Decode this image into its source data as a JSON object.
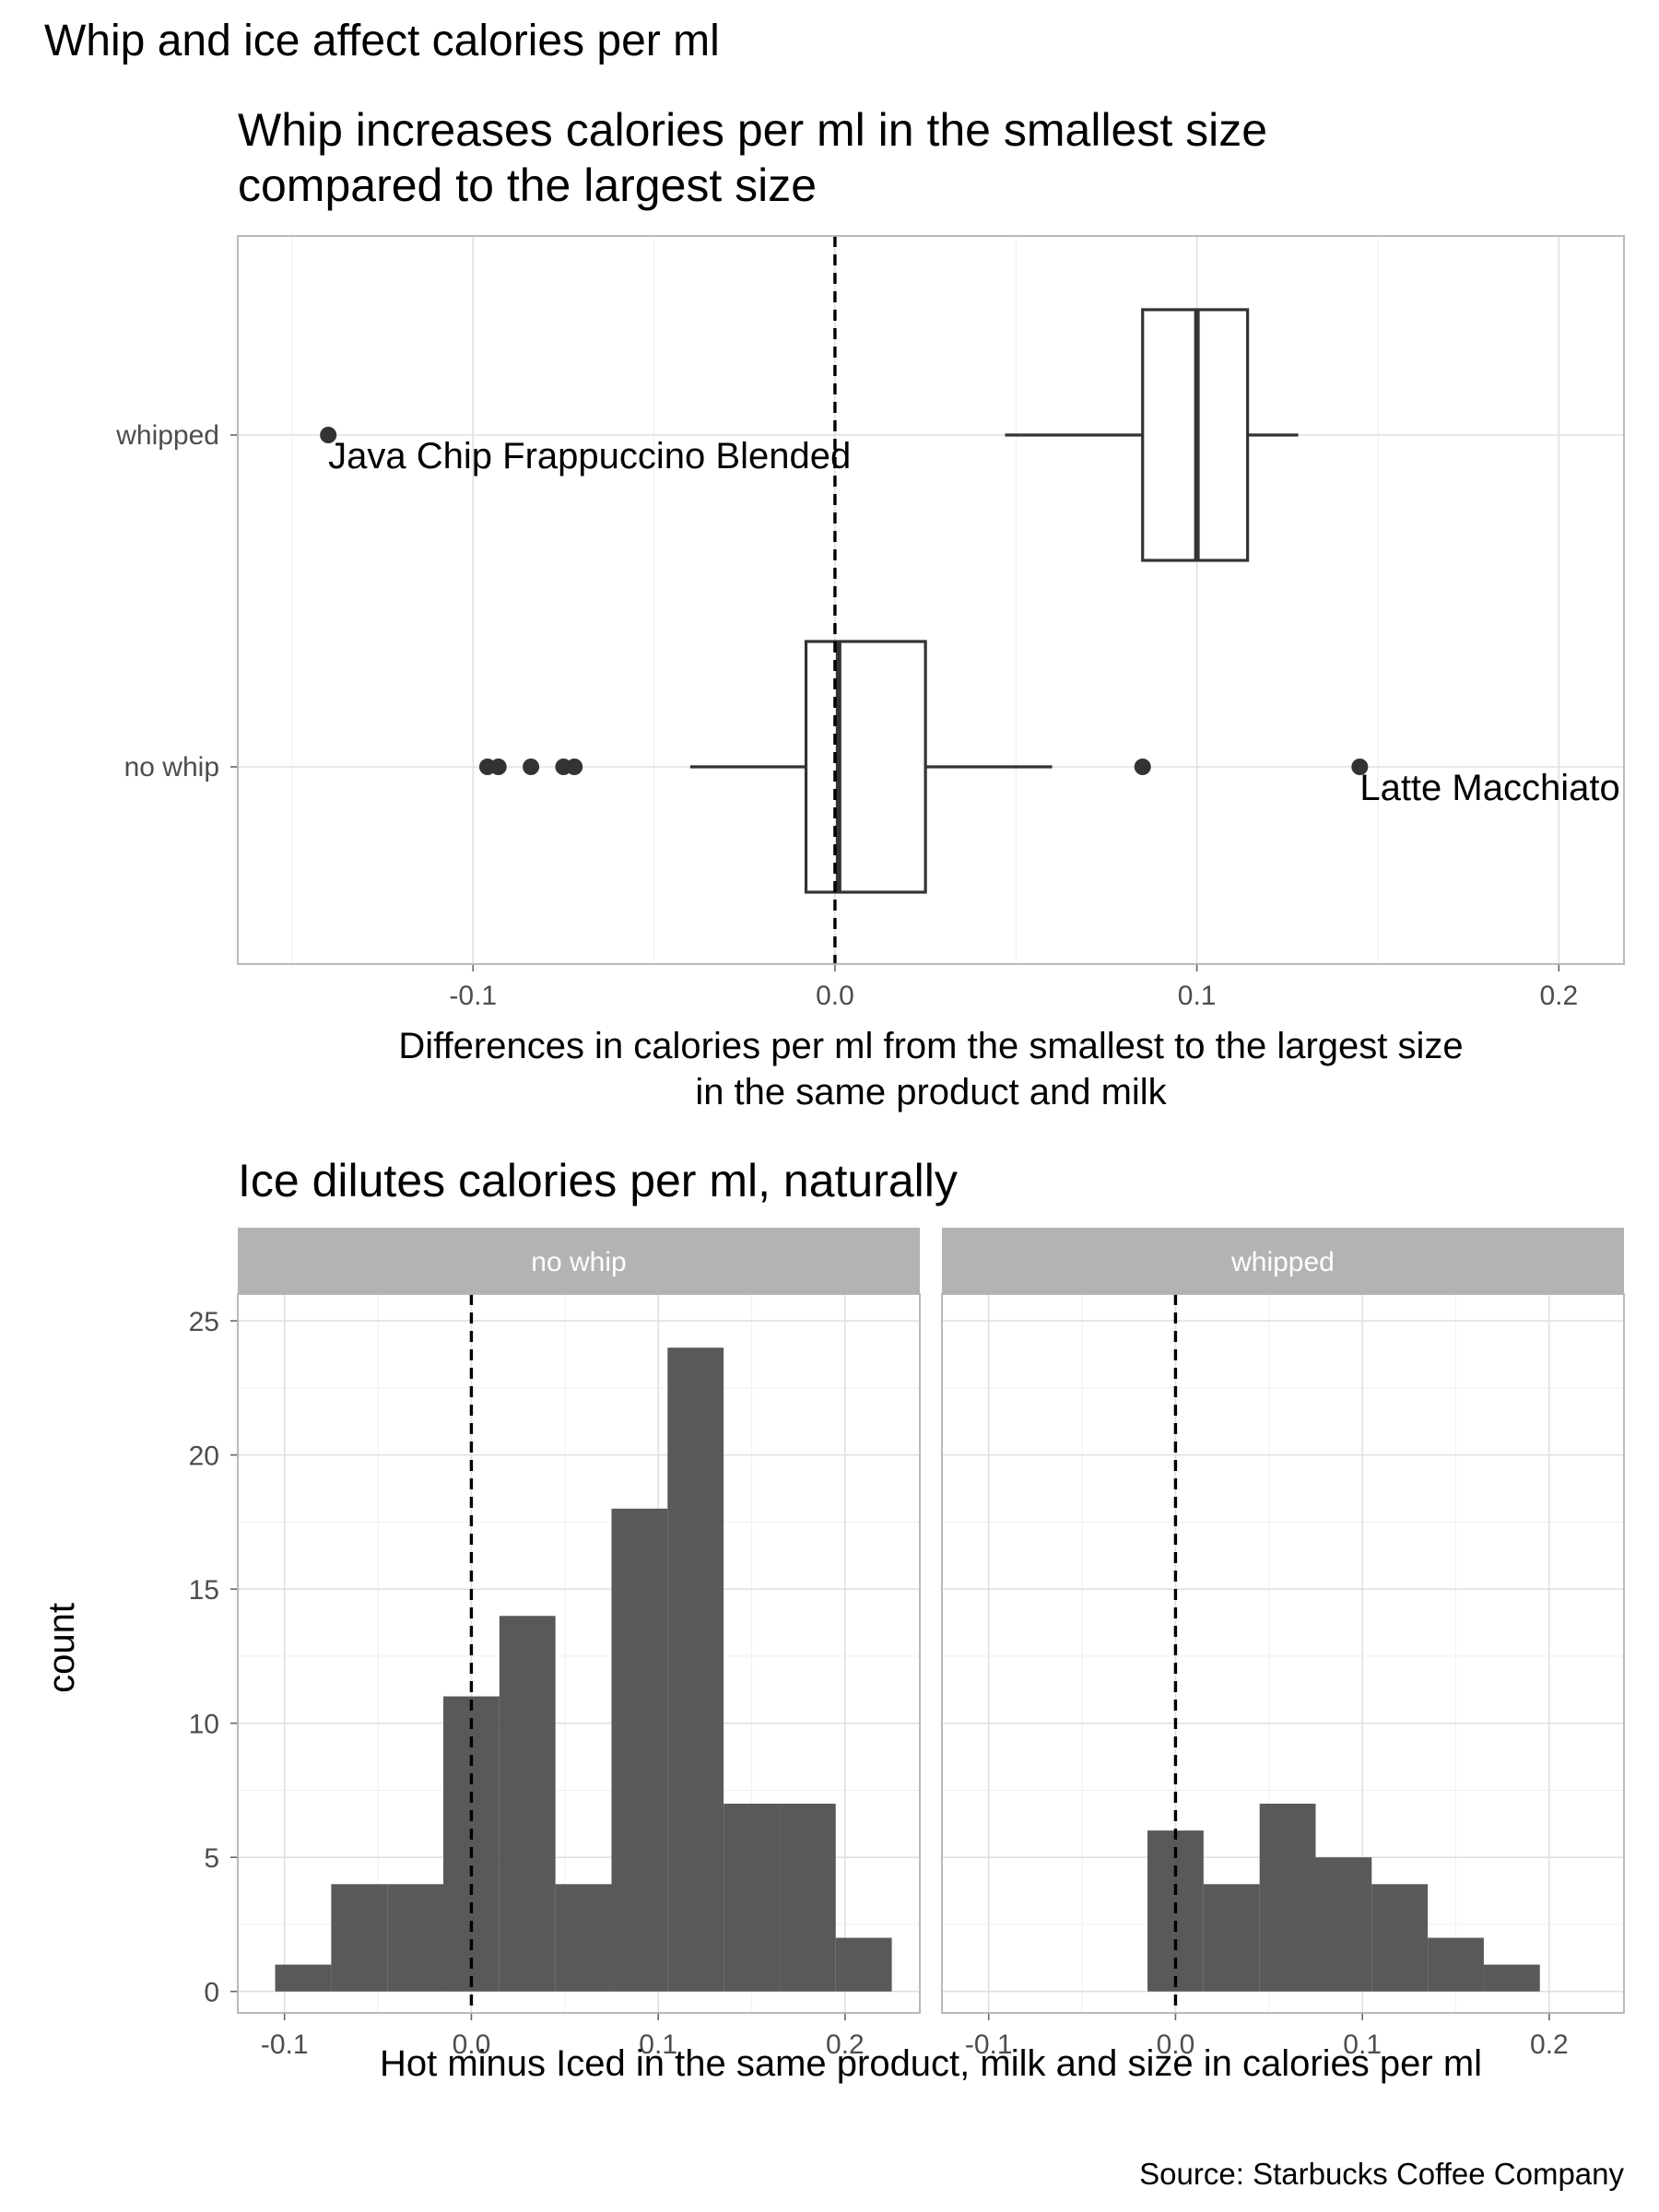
{
  "page": {
    "title": "Whip and ice affect calories per ml",
    "caption": "Source: Starbucks Coffee Company"
  },
  "chart_data": [
    {
      "type": "box",
      "title": "Whip increases calories per ml in the smallest size\ncompared to the largest size",
      "title_lines": [
        "Whip increases calories per ml in the smallest size",
        "compared to the largest size"
      ],
      "xlabel": "Differences in calories per ml from the smallest to the largest size\nin the same product and milk",
      "xlabel_lines": [
        "Differences in calories per ml from the smallest to the largest size",
        "in the same product and milk"
      ],
      "ylabel": "",
      "xlim": [
        -0.165,
        0.218
      ],
      "x_ticks": [
        -0.1,
        0.0,
        0.1,
        0.2
      ],
      "x_tick_labels": [
        "-0.1",
        "0.0",
        "0.1",
        "0.2"
      ],
      "reference_line_x": 0.0,
      "grid": true,
      "categories": [
        "whipped",
        "no whip"
      ],
      "boxes": [
        {
          "category": "whipped",
          "lower_whisker": 0.047,
          "q1": 0.085,
          "median": 0.1,
          "q3": 0.114,
          "upper_whisker": 0.128,
          "outliers": [
            -0.14
          ],
          "labels": [
            {
              "x": -0.14,
              "text": "Java Chip Frappuccino Blended"
            }
          ]
        },
        {
          "category": "no whip",
          "lower_whisker": -0.04,
          "q1": -0.008,
          "median": 0.001,
          "q3": 0.025,
          "upper_whisker": 0.06,
          "outliers": [
            -0.096,
            -0.093,
            -0.084,
            -0.075,
            -0.072,
            0.085,
            0.145
          ],
          "labels": [
            {
              "x": 0.145,
              "text": "Latte Macchiato"
            }
          ]
        }
      ]
    },
    {
      "type": "histogram",
      "title": "Ice dilutes calories per ml, naturally",
      "xlabel": "Hot minus Iced in the same product, milk and size in calories per ml",
      "ylabel": "count",
      "xlim": [
        -0.125,
        0.24
      ],
      "ylim": [
        -0.8,
        26
      ],
      "x_ticks": [
        -0.1,
        0.0,
        0.1,
        0.2
      ],
      "x_tick_labels": [
        "-0.1",
        "0.0",
        "0.1",
        "0.2"
      ],
      "y_ticks": [
        0,
        5,
        10,
        15,
        20,
        25
      ],
      "y_tick_labels": [
        "0",
        "5",
        "10",
        "15",
        "20",
        "25"
      ],
      "reference_line_x": 0.0,
      "bin_width": 0.03,
      "grid": true,
      "facets": [
        {
          "name": "no whip",
          "bins": [
            {
              "x0": -0.105,
              "x1": -0.075,
              "count": 1
            },
            {
              "x0": -0.075,
              "x1": -0.045,
              "count": 4
            },
            {
              "x0": -0.045,
              "x1": -0.015,
              "count": 4
            },
            {
              "x0": -0.015,
              "x1": 0.015,
              "count": 11
            },
            {
              "x0": 0.015,
              "x1": 0.045,
              "count": 14
            },
            {
              "x0": 0.045,
              "x1": 0.075,
              "count": 4
            },
            {
              "x0": 0.075,
              "x1": 0.105,
              "count": 18
            },
            {
              "x0": 0.105,
              "x1": 0.135,
              "count": 24
            },
            {
              "x0": 0.135,
              "x1": 0.165,
              "count": 7
            },
            {
              "x0": 0.165,
              "x1": 0.195,
              "count": 7
            },
            {
              "x0": 0.195,
              "x1": 0.225,
              "count": 2
            }
          ]
        },
        {
          "name": "whipped",
          "bins": [
            {
              "x0": -0.015,
              "x1": 0.015,
              "count": 6
            },
            {
              "x0": 0.015,
              "x1": 0.045,
              "count": 4
            },
            {
              "x0": 0.045,
              "x1": 0.075,
              "count": 7
            },
            {
              "x0": 0.075,
              "x1": 0.105,
              "count": 5
            },
            {
              "x0": 0.105,
              "x1": 0.135,
              "count": 4
            },
            {
              "x0": 0.135,
              "x1": 0.165,
              "count": 2
            },
            {
              "x0": 0.165,
              "x1": 0.195,
              "count": 1
            }
          ]
        }
      ]
    }
  ]
}
